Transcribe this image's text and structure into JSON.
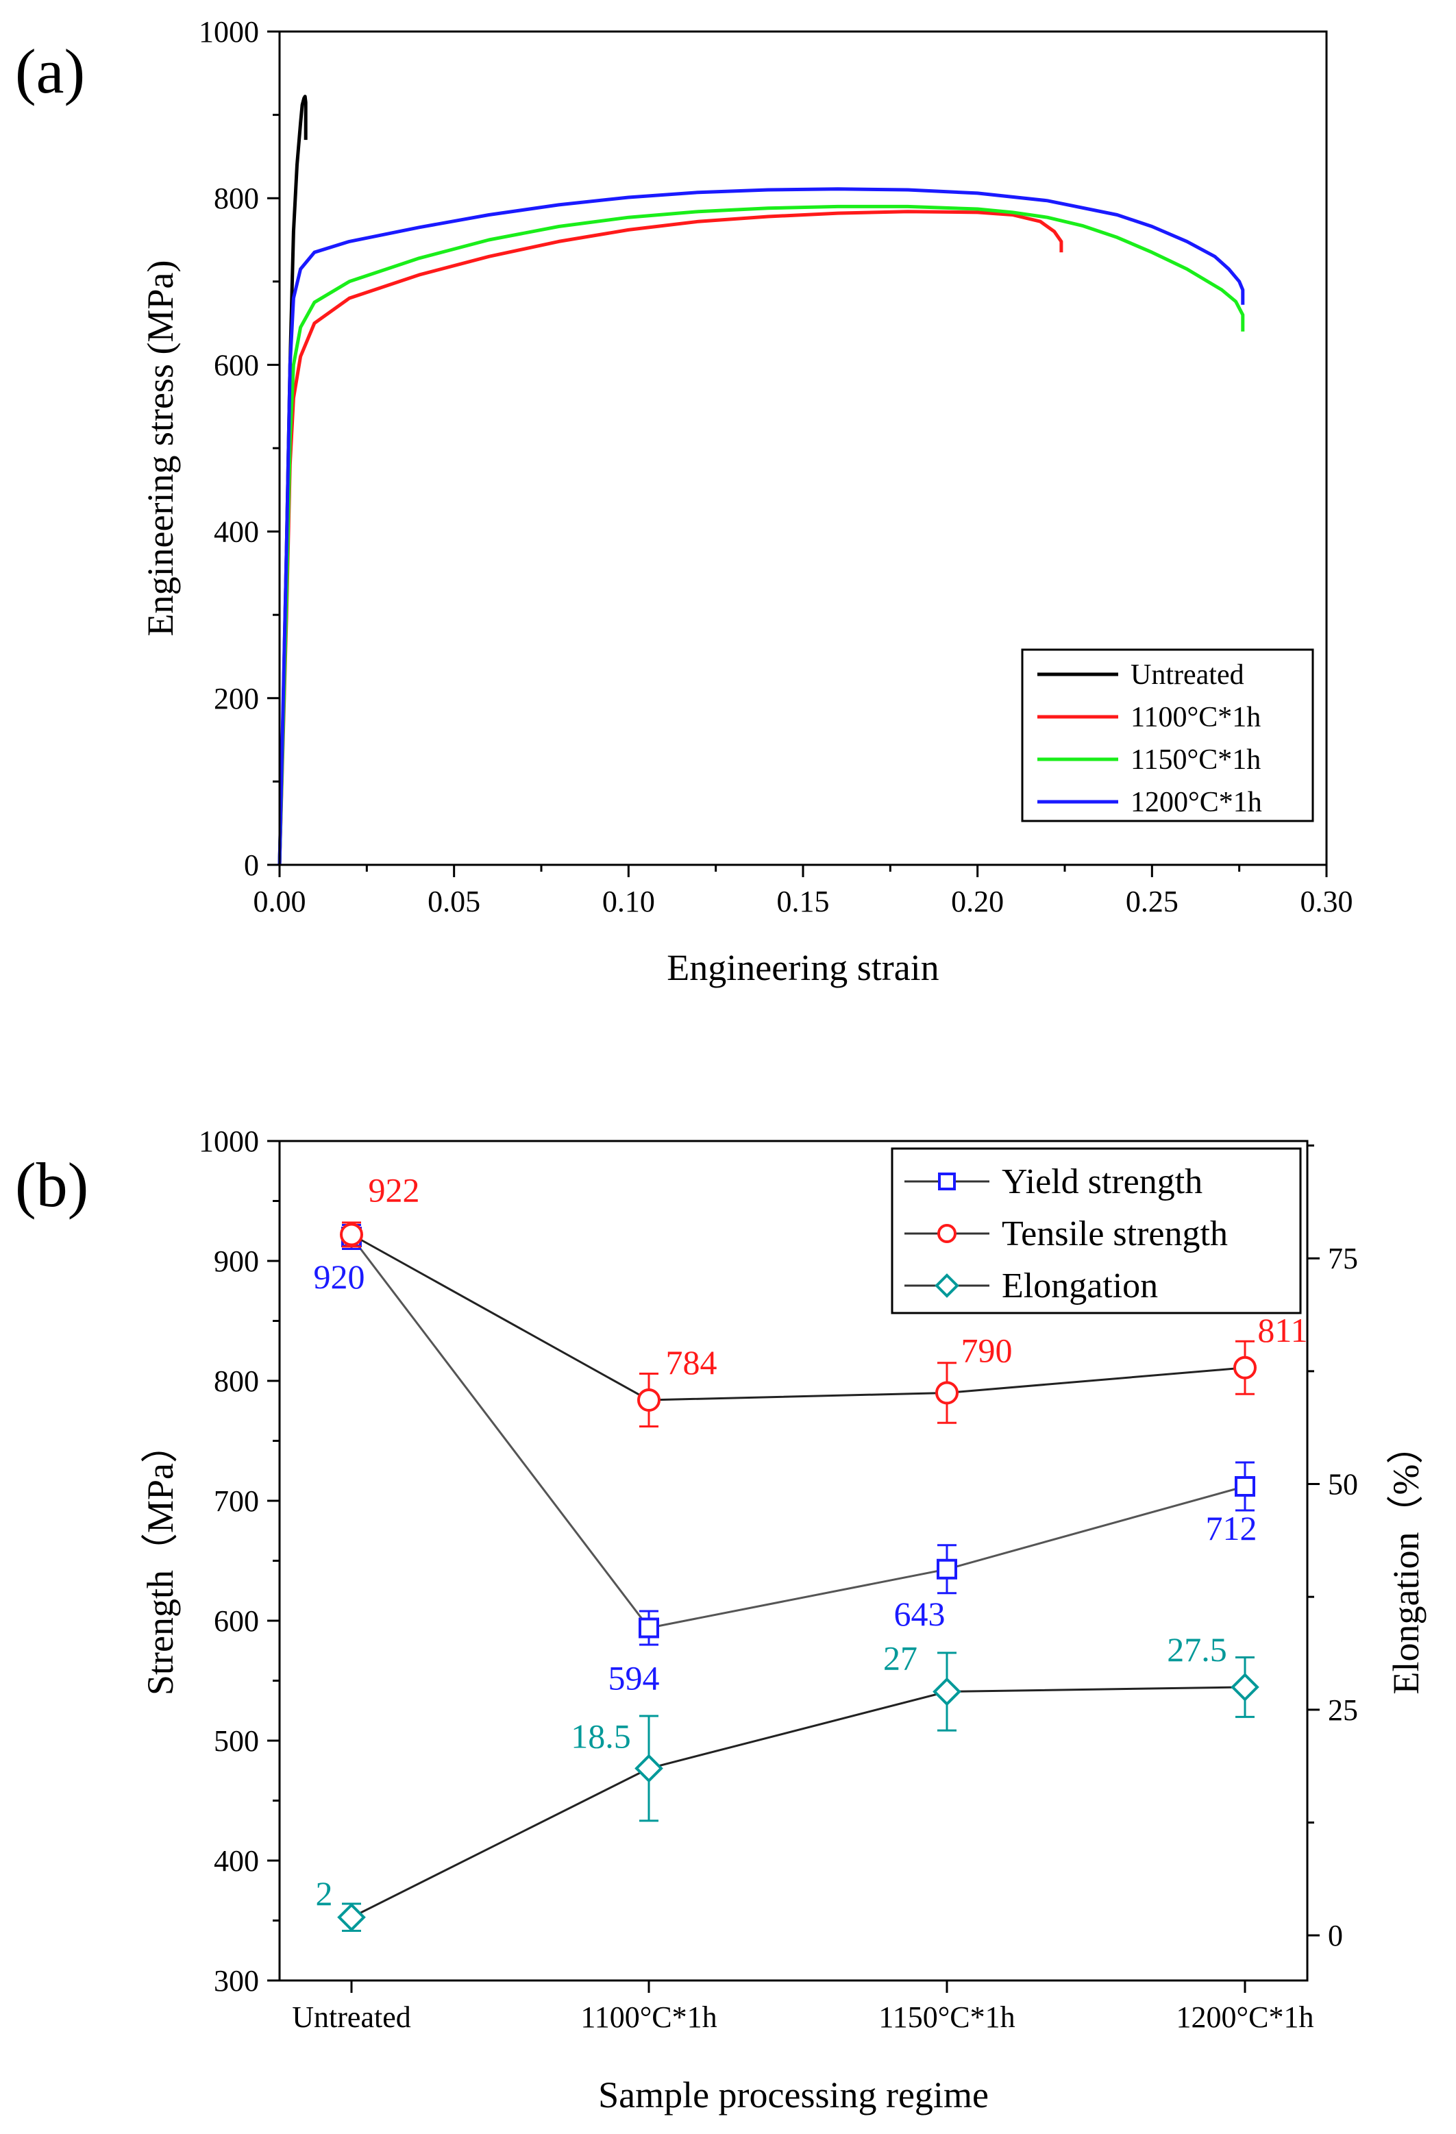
{
  "chart_data": [
    {
      "panel_label": "(a)",
      "type": "line",
      "xlabel": "Engineering strain",
      "ylabel": "Engineering stress (MPa)",
      "xlim": [
        0,
        0.3
      ],
      "ylim": [
        0,
        1000
      ],
      "x_ticks": [
        0,
        0.05,
        0.1,
        0.15,
        0.2,
        0.25,
        0.3
      ],
      "x_tick_labels": [
        "0.00",
        "0.05",
        "0.10",
        "0.15",
        "0.20",
        "0.25",
        "0.30"
      ],
      "y_ticks": [
        0,
        200,
        400,
        600,
        800,
        1000
      ],
      "y_tick_labels": [
        "0",
        "200",
        "400",
        "600",
        "800",
        "1000"
      ],
      "legend_position": "bottom-right",
      "series": [
        {
          "name": "Untreated",
          "color": "#000000",
          "x": [
            0,
            0.001,
            0.002,
            0.003,
            0.004,
            0.005,
            0.006,
            0.0065,
            0.007,
            0.0073,
            0.0075,
            0.0075
          ],
          "y": [
            0,
            180,
            380,
            600,
            760,
            840,
            890,
            912,
            920,
            922,
            915,
            870
          ]
        },
        {
          "name": "1100°C*1h",
          "color": "#ff1a1a",
          "x": [
            0,
            0.002,
            0.003,
            0.004,
            0.006,
            0.01,
            0.02,
            0.04,
            0.06,
            0.08,
            0.1,
            0.12,
            0.14,
            0.16,
            0.18,
            0.2,
            0.21,
            0.218,
            0.222,
            0.224,
            0.224
          ],
          "y": [
            0,
            300,
            480,
            560,
            610,
            650,
            680,
            708,
            730,
            748,
            762,
            772,
            778,
            782,
            784,
            783,
            780,
            772,
            760,
            748,
            735
          ]
        },
        {
          "name": "1150°C*1h",
          "color": "#1aee1a",
          "x": [
            0,
            0.002,
            0.003,
            0.004,
            0.006,
            0.01,
            0.02,
            0.04,
            0.06,
            0.08,
            0.1,
            0.12,
            0.14,
            0.16,
            0.18,
            0.2,
            0.21,
            0.22,
            0.23,
            0.24,
            0.25,
            0.26,
            0.27,
            0.274,
            0.276,
            0.276
          ],
          "y": [
            0,
            320,
            510,
            600,
            645,
            675,
            700,
            728,
            750,
            766,
            777,
            784,
            788,
            790,
            790,
            787,
            783,
            777,
            767,
            753,
            735,
            715,
            690,
            676,
            660,
            640
          ]
        },
        {
          "name": "1200°C*1h",
          "color": "#1a1aff",
          "x": [
            0,
            0.002,
            0.003,
            0.004,
            0.006,
            0.01,
            0.02,
            0.04,
            0.06,
            0.08,
            0.1,
            0.12,
            0.14,
            0.16,
            0.18,
            0.2,
            0.22,
            0.24,
            0.25,
            0.26,
            0.268,
            0.272,
            0.275,
            0.276,
            0.276
          ],
          "y": [
            0,
            380,
            600,
            680,
            715,
            735,
            748,
            765,
            780,
            792,
            801,
            807,
            810,
            811,
            810,
            806,
            797,
            780,
            766,
            748,
            730,
            715,
            700,
            690,
            672
          ]
        }
      ]
    },
    {
      "panel_label": "(b)",
      "type": "line",
      "xlabel": "Sample processing regime",
      "ylabel": "Strength（MPa）",
      "y2label": "Elongation（%）",
      "categories": [
        "Untreated",
        "1100°C*1h",
        "1150°C*1h",
        "1200°C*1h"
      ],
      "ylim": [
        300,
        1000
      ],
      "y2lim": [
        -5,
        88
      ],
      "y_ticks": [
        300,
        400,
        500,
        600,
        700,
        800,
        900,
        1000
      ],
      "y_tick_labels": [
        "300",
        "400",
        "500",
        "600",
        "700",
        "800",
        "900",
        "1000"
      ],
      "y2_ticks": [
        0,
        25,
        50,
        75
      ],
      "y2_tick_labels": [
        "0",
        "25",
        "50",
        "75"
      ],
      "legend_position": "top-right",
      "series": [
        {
          "name": "Yield strength",
          "axis": "left",
          "color": "#1a1aff",
          "marker": "square",
          "values": [
            920,
            594,
            643,
            712
          ],
          "errors": [
            10,
            14,
            20,
            20
          ],
          "labels": [
            "920",
            "594",
            "643",
            "712"
          ]
        },
        {
          "name": "Tensile strength",
          "axis": "left",
          "color": "#ff1a1a",
          "marker": "circle",
          "values": [
            922,
            784,
            790,
            811
          ],
          "errors": [
            10,
            22,
            25,
            22
          ],
          "labels": [
            "922",
            "784",
            "790",
            "811"
          ]
        },
        {
          "name": "Elongation",
          "axis": "right",
          "color": "#009999",
          "marker": "diamond",
          "values": [
            2,
            18.5,
            27,
            27.5
          ],
          "errors": [
            1.5,
            5.8,
            4.3,
            3.3
          ],
          "labels": [
            "2",
            "18.5",
            "27",
            "27.5"
          ]
        }
      ]
    }
  ]
}
